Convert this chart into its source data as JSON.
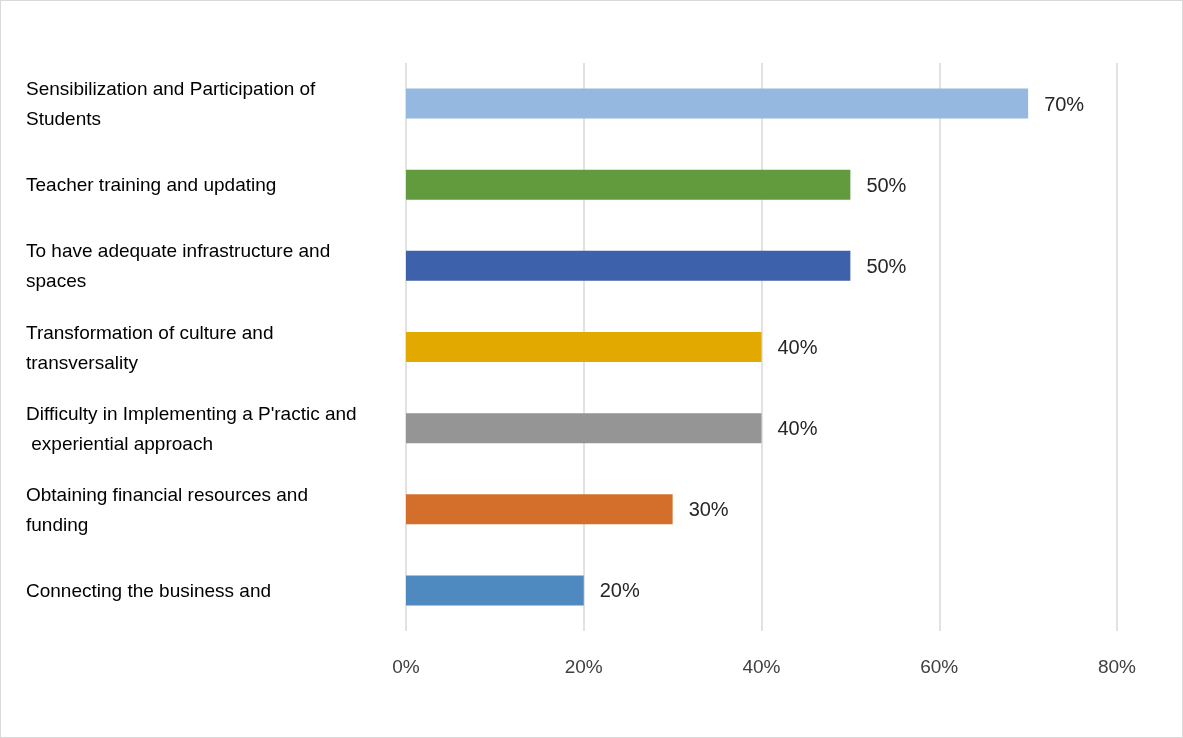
{
  "chart_data": {
    "type": "bar",
    "orientation": "horizontal",
    "categories": [
      "Sensibilization and Participation of Students",
      "Teacher training and updating",
      "To have adequate infrastructure and spaces",
      "Transformation of culture and transversality",
      "Difficulty in Implementing a P'ractic and experiential approach",
      "Obtaining financial resources and funding",
      "Connecting the business and"
    ],
    "values": [
      70,
      50,
      50,
      40,
      40,
      30,
      20
    ],
    "colors": [
      "#95b8e0",
      "#629b3e",
      "#3d62ab",
      "#e2aa00",
      "#959595",
      "#d46e2b",
      "#4e89c0"
    ],
    "value_labels": [
      "70%",
      "50%",
      "50%",
      "40%",
      "40%",
      "30%",
      "20%"
    ],
    "xlim": [
      0,
      80
    ],
    "xticks": [
      {
        "value": 0,
        "label": "0%"
      },
      {
        "value": 20,
        "label": "20%"
      },
      {
        "value": 40,
        "label": "40%"
      },
      {
        "value": 60,
        "label": "60%"
      },
      {
        "value": 80,
        "label": "80%"
      }
    ],
    "grid": "x"
  }
}
